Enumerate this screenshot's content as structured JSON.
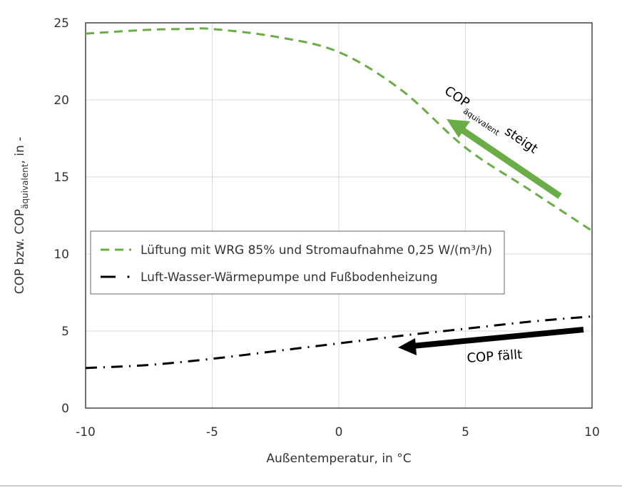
{
  "chart_data": {
    "type": "line",
    "xlabel": "Außentemperatur, in °C",
    "ylabel_main": "COP bzw. COP",
    "ylabel_sub": "äquivalent",
    "ylabel_tail": ", in -",
    "xlim": [
      -10,
      10
    ],
    "ylim": [
      0,
      25
    ],
    "xticks": [
      "-10",
      "-5",
      "0",
      "5",
      "10"
    ],
    "yticks": [
      "0",
      "5",
      "10",
      "15",
      "20",
      "25"
    ],
    "grid": true,
    "legend_position": "center-left",
    "series": [
      {
        "name": "Lüftung mit WRG 85% und Stromaufnahme 0,25 W/(m³/h)",
        "color": "#6aac46",
        "style": "dashed",
        "x": [
          -10,
          -7.5,
          -6,
          -5,
          -2.5,
          0,
          2.5,
          5,
          7.5,
          10
        ],
        "y": [
          24.3,
          24.55,
          24.6,
          24.6,
          24.1,
          23.1,
          20.6,
          16.9,
          14.2,
          11.5
        ]
      },
      {
        "name": "Luft-Wasser-Wärmepumpe und Fußbodenheizung",
        "color": "#000000",
        "style": "dash-dot",
        "x": [
          -10,
          -7.5,
          -5,
          -2.5,
          0,
          2.5,
          5,
          7.5,
          10
        ],
        "y": [
          2.6,
          2.8,
          3.2,
          3.7,
          4.2,
          4.7,
          5.15,
          5.6,
          5.95
        ]
      }
    ],
    "annotations": {
      "green_main": "COP",
      "green_sub": "äquivalent",
      "green_tail": "steigt",
      "black": "COP fällt"
    }
  }
}
